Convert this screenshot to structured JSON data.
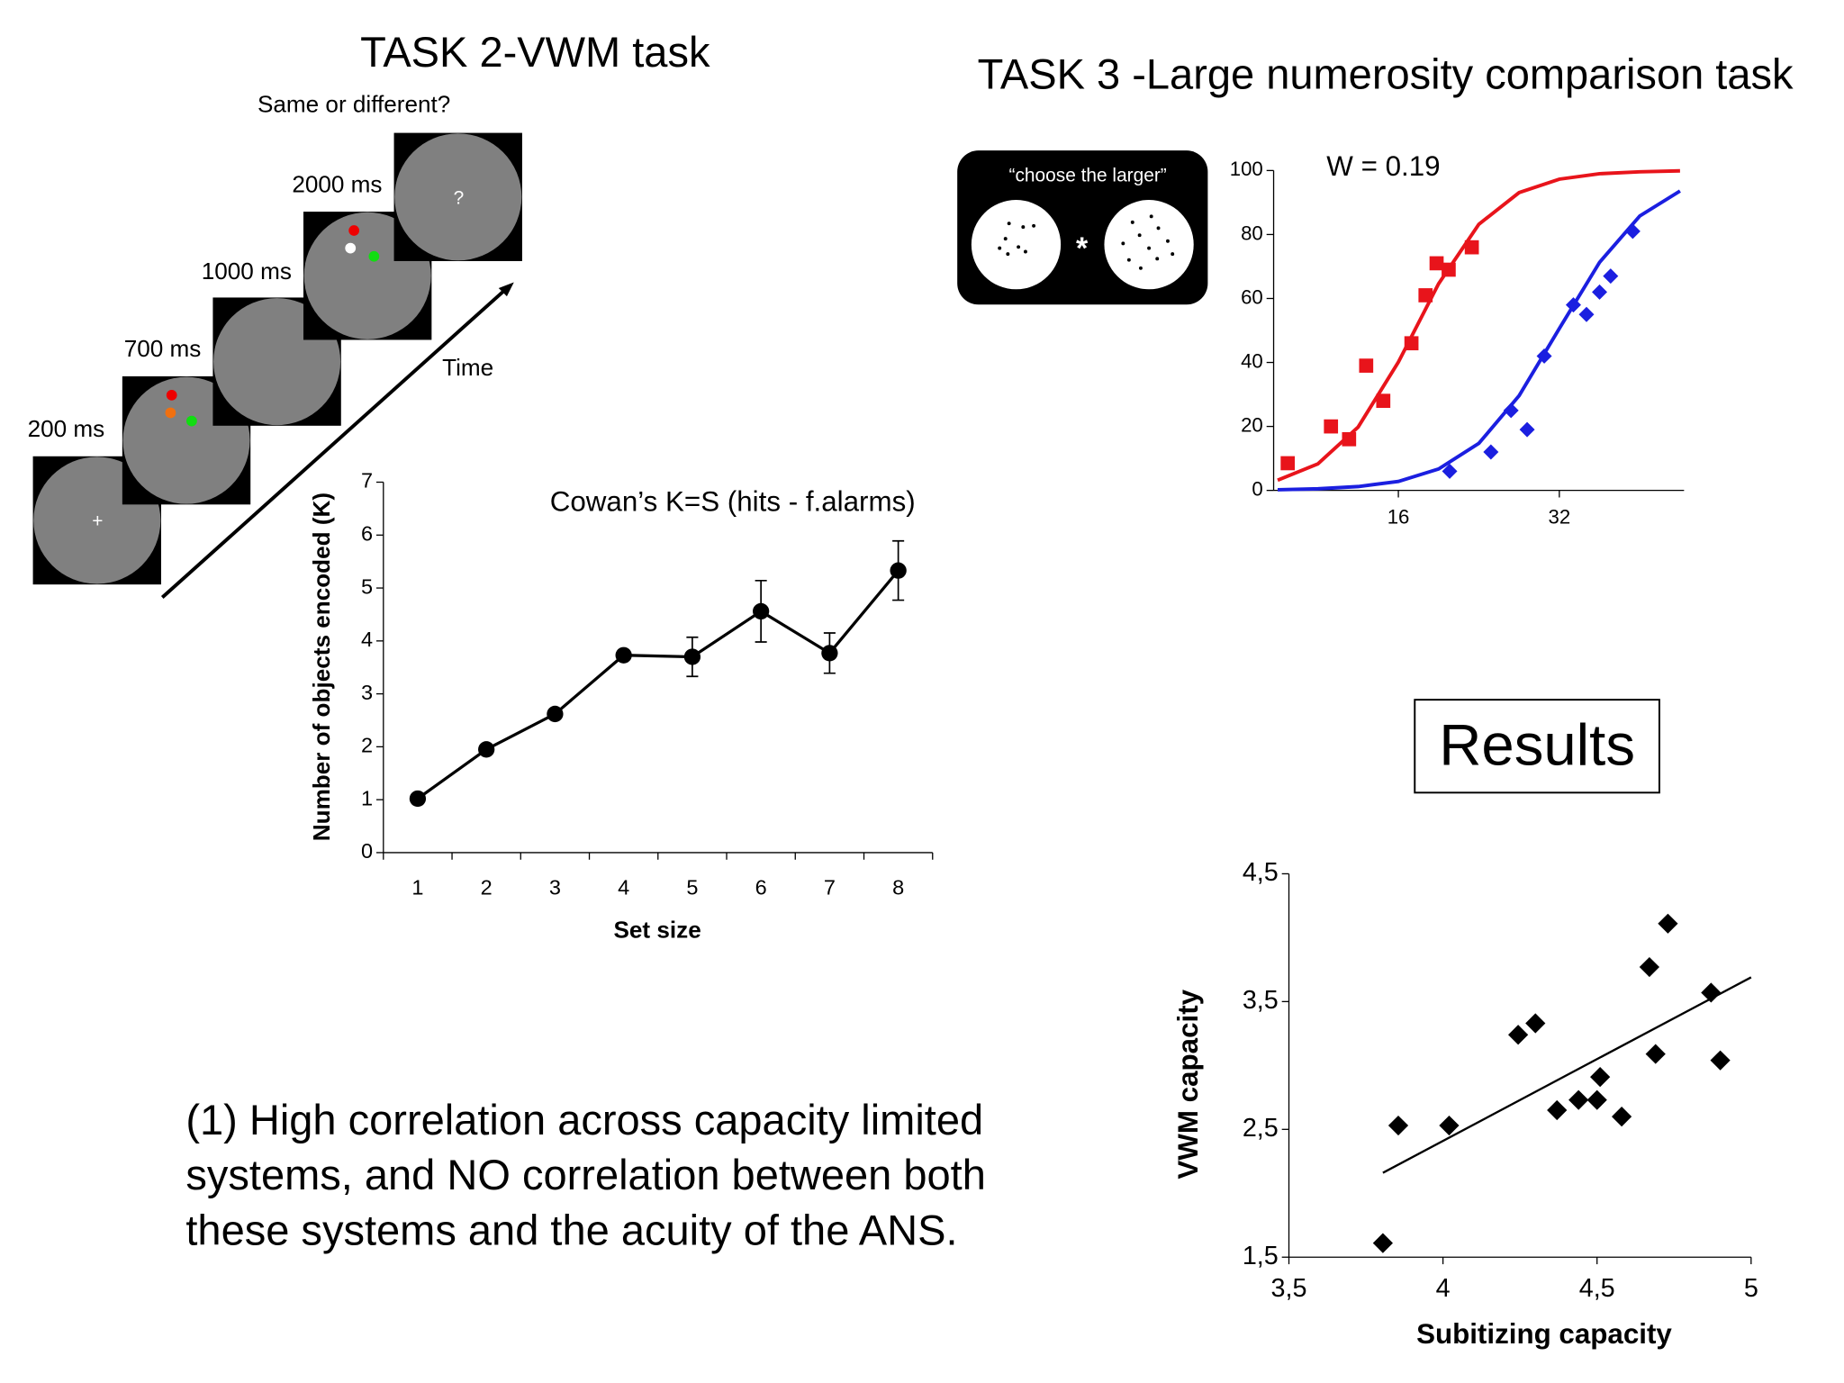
{
  "slide": {
    "task2_title": "TASK 2-VWM task",
    "prompt": "Same or different?",
    "durations": [
      "2000 ms",
      "1000 ms",
      "700 ms",
      "200 ms"
    ],
    "time_label": "Time",
    "question_mark": "?",
    "fixation": "+",
    "task3_title": "TASK 3 -Large numerosity comparison task",
    "instruction": "“choose the larger”",
    "star": "*",
    "results": "Results",
    "conclusion": [
      "(1) High correlation across capacity limited",
      "systems, and NO correlation between both",
      "these systems and the acuity of the ANS."
    ]
  },
  "chart_data": [
    {
      "type": "line",
      "title": "Cowan’s K=S (hits - f.alarms)",
      "x_label": "Set size",
      "y_label": "Number of objects encoded (K)",
      "categories": [
        "1",
        "2",
        "3",
        "4",
        "5",
        "6",
        "7",
        "8"
      ],
      "values": [
        1.02,
        1.95,
        2.62,
        3.73,
        3.7,
        4.56,
        3.77,
        5.33
      ],
      "errors": [
        0,
        0,
        0,
        0,
        0.37,
        0.58,
        0.38,
        0.56
      ],
      "color": "#000000",
      "ylim": [
        0,
        7
      ],
      "yticks": [
        0,
        1,
        2,
        3,
        4,
        5,
        6,
        7
      ]
    },
    {
      "type": "scatter",
      "annotation": "W = 0.19",
      "xlim": [
        3.6,
        44.4
      ],
      "xticks": [
        16,
        32
      ],
      "ylim": [
        0,
        100
      ],
      "yticks": [
        0,
        20,
        40,
        60,
        80,
        100
      ],
      "series": [
        {
          "color": "#e8141b",
          "marker": "square",
          "x": [
            5.0,
            9.3,
            11.1,
            12.8,
            14.5,
            17.3,
            18.7,
            19.8,
            21.0,
            23.3
          ],
          "values": [
            8.5,
            20,
            16,
            39,
            28,
            46,
            61,
            71,
            69,
            76
          ],
          "curve": {
            "x": [
              4,
              8,
              12,
              16,
              20,
              24,
              28,
              32,
              36,
              40,
              44
            ],
            "values": [
              3.2,
              8.3,
              19.8,
              40.1,
              64.6,
              83.2,
              93.1,
              97.3,
              99.0,
              99.6,
              99.9
            ]
          }
        },
        {
          "color": "#1b1fe0",
          "marker": "diamond",
          "x": [
            21.1,
            25.2,
            27.2,
            28.8,
            30.5,
            33.4,
            34.7,
            36.0,
            37.1,
            39.3
          ],
          "values": [
            6,
            12,
            25,
            19,
            42,
            58,
            55,
            62,
            67,
            81
          ],
          "curve": {
            "x": [
              4,
              8,
              12,
              16,
              20,
              24,
              28,
              32,
              36,
              40,
              44
            ],
            "values": [
              0.2,
              0.5,
              1.2,
              2.8,
              6.7,
              14.7,
              29.6,
              50.6,
              71.3,
              85.8,
              93.6
            ]
          }
        }
      ]
    },
    {
      "type": "scatter",
      "x_label": "Subitizing capacity",
      "y_label": "VWM capacity",
      "xlim": [
        3.5,
        5
      ],
      "xticks": [
        {
          "value": 3.5,
          "label": "3,5"
        },
        4,
        {
          "value": 4.5,
          "label": "4,5"
        },
        5
      ],
      "ylim": [
        1.5,
        4.5
      ],
      "yticks": [
        {
          "value": 1.5,
          "label": "1,5"
        },
        {
          "value": 2.5,
          "label": "2,5"
        },
        {
          "value": 3.5,
          "label": "3,5"
        },
        {
          "value": 4.5,
          "label": "4,5"
        }
      ],
      "series": [
        {
          "color": "#000000",
          "marker": "diamond",
          "x": [
            3.805,
            3.855,
            4.02,
            4.244,
            4.3,
            4.37,
            4.44,
            4.5,
            4.51,
            4.58,
            4.67,
            4.69,
            4.73,
            4.87,
            4.9
          ],
          "values": [
            1.61,
            2.53,
            2.53,
            3.24,
            3.33,
            2.65,
            2.73,
            2.73,
            2.91,
            2.6,
            3.77,
            3.09,
            4.11,
            3.57,
            3.04
          ],
          "trendline": {
            "x": [
              3.805,
              5
            ],
            "values": [
              2.16,
              3.69
            ]
          }
        }
      ]
    }
  ]
}
